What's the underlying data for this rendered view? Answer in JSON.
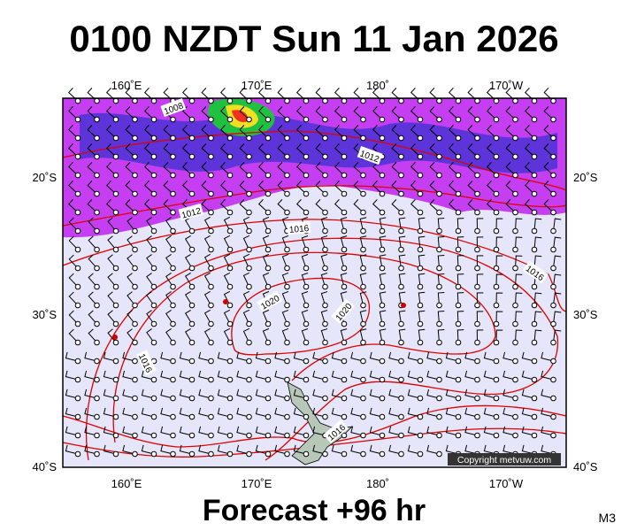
{
  "title": "0100 NZDT Sun 11 Jan 2026",
  "footer": "Forecast +96 hr",
  "model": "M3",
  "copyright": "Copyright metvuw.com",
  "map": {
    "lon_labels_top": [
      "160˚E",
      "170˚E",
      "180˚",
      "170˚W"
    ],
    "lon_labels_bottom": [
      "160˚E",
      "170˚E",
      "180˚",
      "170˚W"
    ],
    "lat_labels_left": [
      "20˚S",
      "30˚S",
      "40˚S"
    ],
    "lat_labels_right": [
      "20˚S",
      "30˚S",
      "40˚S"
    ],
    "isobar_labels": [
      "1008",
      "1012",
      "1012",
      "1016",
      "1016",
      "1020",
      "1020",
      "1016",
      "1016"
    ]
  }
}
